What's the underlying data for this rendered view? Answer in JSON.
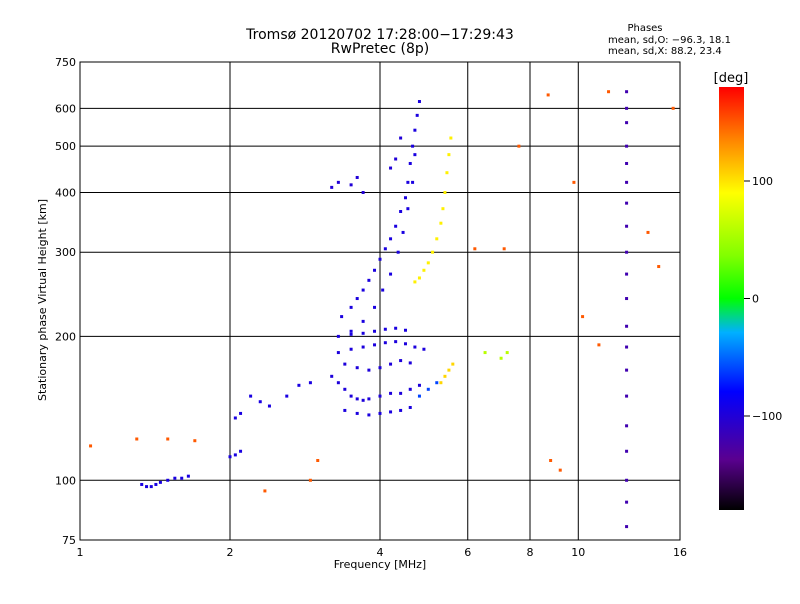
{
  "chart_data": {
    "type": "scatter",
    "title": "Tromsø 20120702 17:28:00−17:29:43",
    "subtitle": "RwPretec (8p)",
    "xlabel": "Frequency [MHz]",
    "ylabel": "Stationary phase Virtual Height [km]",
    "xscale": "log2",
    "yscale": "log",
    "xlim": [
      1,
      16
    ],
    "ylim": [
      75,
      750
    ],
    "xticks": [
      1,
      2,
      4,
      6,
      8,
      10,
      16
    ],
    "xtick_labels": [
      "1",
      "2",
      "4",
      "6",
      "8",
      "10",
      "16"
    ],
    "yticks": [
      75,
      100,
      200,
      300,
      400,
      500,
      600,
      750
    ],
    "ytick_labels": [
      "75",
      "100",
      "200",
      "300",
      "400",
      "500",
      "600",
      "750"
    ],
    "grid": true,
    "stats": {
      "heading": "Phases",
      "line_o": "mean, sd,O: −96.3, 18.1",
      "line_x": "mean, sd,X:  88.2, 23.4"
    },
    "colorbar": {
      "label": "[deg]",
      "range": [
        -180,
        180
      ],
      "ticks": [
        100,
        0,
        -100
      ],
      "tick_labels": [
        "100",
        "0",
        "−100"
      ]
    },
    "series": [
      {
        "color_value": -95,
        "points": [
          [
            1.33,
            98
          ],
          [
            1.36,
            97
          ],
          [
            1.39,
            97
          ],
          [
            1.42,
            98
          ],
          [
            1.45,
            99
          ],
          [
            1.5,
            100
          ],
          [
            1.55,
            101
          ],
          [
            1.6,
            101
          ],
          [
            1.65,
            102
          ]
        ]
      },
      {
        "color_value": -95,
        "points": [
          [
            2.0,
            112
          ],
          [
            2.05,
            113
          ],
          [
            2.1,
            115
          ],
          [
            2.05,
            135
          ],
          [
            2.1,
            138
          ],
          [
            2.2,
            150
          ],
          [
            2.3,
            146
          ],
          [
            2.4,
            143
          ],
          [
            2.6,
            150
          ],
          [
            2.75,
            158
          ],
          [
            2.9,
            160
          ]
        ]
      },
      {
        "color_value": -98,
        "points": [
          [
            3.2,
            165
          ],
          [
            3.3,
            160
          ],
          [
            3.4,
            155
          ],
          [
            3.5,
            150
          ],
          [
            3.6,
            148
          ],
          [
            3.7,
            147
          ],
          [
            3.8,
            148
          ],
          [
            4.0,
            150
          ],
          [
            4.2,
            152
          ],
          [
            4.4,
            152
          ],
          [
            4.6,
            155
          ],
          [
            4.8,
            158
          ]
        ]
      },
      {
        "color_value": -98,
        "points": [
          [
            3.4,
            175
          ],
          [
            3.6,
            172
          ],
          [
            3.8,
            170
          ],
          [
            4.0,
            172
          ],
          [
            4.2,
            175
          ],
          [
            4.4,
            178
          ],
          [
            4.6,
            176
          ]
        ]
      },
      {
        "color_value": -97,
        "points": [
          [
            3.3,
            185
          ],
          [
            3.5,
            188
          ],
          [
            3.7,
            190
          ],
          [
            3.9,
            192
          ],
          [
            4.1,
            194
          ],
          [
            4.3,
            195
          ],
          [
            4.5,
            193
          ],
          [
            4.7,
            190
          ],
          [
            4.9,
            188
          ]
        ]
      },
      {
        "color_value": -96,
        "points": [
          [
            3.3,
            200
          ],
          [
            3.5,
            202
          ],
          [
            3.7,
            203
          ],
          [
            3.9,
            205
          ],
          [
            4.1,
            207
          ],
          [
            4.3,
            208
          ],
          [
            4.5,
            206
          ]
        ]
      },
      {
        "color_value": -96,
        "points": [
          [
            3.35,
            220
          ],
          [
            3.5,
            230
          ],
          [
            3.6,
            240
          ],
          [
            3.7,
            250
          ],
          [
            3.8,
            262
          ],
          [
            3.9,
            275
          ],
          [
            4.0,
            290
          ],
          [
            4.1,
            305
          ],
          [
            4.2,
            320
          ],
          [
            4.3,
            340
          ],
          [
            4.4,
            365
          ],
          [
            4.5,
            390
          ],
          [
            4.55,
            420
          ],
          [
            4.6,
            460
          ],
          [
            4.65,
            500
          ],
          [
            4.7,
            540
          ],
          [
            4.75,
            580
          ],
          [
            4.8,
            620
          ]
        ]
      },
      {
        "color_value": -95,
        "points": [
          [
            3.5,
            205
          ],
          [
            3.7,
            215
          ],
          [
            3.9,
            230
          ],
          [
            4.05,
            250
          ],
          [
            4.2,
            270
          ],
          [
            4.35,
            300
          ],
          [
            4.45,
            330
          ],
          [
            4.55,
            370
          ],
          [
            4.65,
            420
          ],
          [
            4.7,
            480
          ]
        ]
      },
      {
        "color_value": -96,
        "points": [
          [
            3.4,
            140
          ],
          [
            3.6,
            138
          ],
          [
            3.8,
            137
          ],
          [
            4.0,
            138
          ],
          [
            4.2,
            139
          ],
          [
            4.4,
            140
          ],
          [
            4.6,
            142
          ]
        ]
      },
      {
        "color_value": -100,
        "points": [
          [
            3.2,
            410
          ],
          [
            3.3,
            420
          ],
          [
            3.5,
            415
          ],
          [
            3.6,
            430
          ],
          [
            3.7,
            400
          ],
          [
            4.2,
            450
          ],
          [
            4.3,
            470
          ],
          [
            4.4,
            520
          ]
        ]
      },
      {
        "color_value": 95,
        "points": [
          [
            4.7,
            260
          ],
          [
            4.8,
            265
          ],
          [
            4.9,
            275
          ],
          [
            5.0,
            285
          ],
          [
            5.1,
            300
          ],
          [
            5.2,
            320
          ],
          [
            5.3,
            345
          ],
          [
            5.35,
            370
          ],
          [
            5.4,
            400
          ],
          [
            5.45,
            440
          ],
          [
            5.5,
            480
          ],
          [
            5.55,
            520
          ]
        ]
      },
      {
        "color_value": 105,
        "points": [
          [
            5.3,
            160
          ],
          [
            5.4,
            165
          ],
          [
            5.5,
            170
          ],
          [
            5.6,
            175
          ]
        ]
      },
      {
        "color_value": -60,
        "points": [
          [
            4.8,
            150
          ],
          [
            5.0,
            155
          ],
          [
            5.2,
            160
          ]
        ]
      },
      {
        "color_value": 60,
        "points": [
          [
            6.5,
            185
          ],
          [
            7.0,
            180
          ],
          [
            7.2,
            185
          ]
        ]
      },
      {
        "color_value": -120,
        "points": [
          [
            12.5,
            650
          ],
          [
            12.5,
            600
          ],
          [
            12.5,
            560
          ],
          [
            12.5,
            500
          ],
          [
            12.5,
            460
          ],
          [
            12.5,
            420
          ],
          [
            12.5,
            380
          ],
          [
            12.5,
            340
          ],
          [
            12.5,
            300
          ],
          [
            12.5,
            270
          ],
          [
            12.5,
            240
          ],
          [
            12.5,
            210
          ],
          [
            12.5,
            190
          ],
          [
            12.5,
            170
          ],
          [
            12.5,
            150
          ],
          [
            12.5,
            130
          ],
          [
            12.5,
            115
          ],
          [
            12.5,
            100
          ],
          [
            12.5,
            90
          ],
          [
            12.5,
            80
          ]
        ]
      },
      {
        "color_value": 150,
        "points": [
          [
            1.05,
            118
          ],
          [
            1.3,
            122
          ],
          [
            1.5,
            122
          ],
          [
            1.7,
            121
          ],
          [
            2.35,
            95
          ],
          [
            2.9,
            100
          ],
          [
            3.0,
            110
          ],
          [
            6.2,
            305
          ],
          [
            7.1,
            305
          ],
          [
            7.6,
            500
          ],
          [
            8.7,
            640
          ],
          [
            9.8,
            420
          ],
          [
            11.5,
            650
          ],
          [
            13.8,
            330
          ],
          [
            14.5,
            280
          ],
          [
            15.5,
            600
          ],
          [
            10.2,
            220
          ],
          [
            11.0,
            192
          ],
          [
            8.8,
            110
          ],
          [
            9.2,
            105
          ]
        ]
      }
    ]
  }
}
